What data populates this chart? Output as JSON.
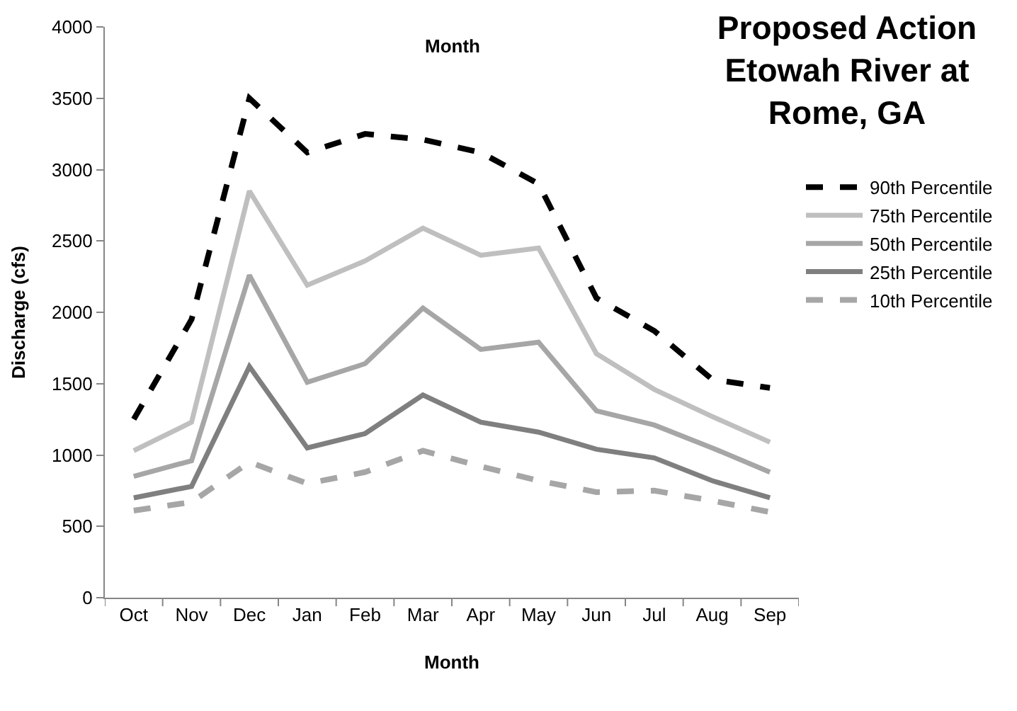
{
  "chart_data": {
    "type": "line",
    "title": "Proposed Action\nEtowah River at\nRome, GA",
    "xlabel": "Month",
    "ylabel": "Discharge (cfs)",
    "annotations": [
      "Month"
    ],
    "categories": [
      "Oct",
      "Nov",
      "Dec",
      "Jan",
      "Feb",
      "Mar",
      "Apr",
      "May",
      "Jun",
      "Jul",
      "Aug",
      "Sep"
    ],
    "ylim": [
      0,
      4000
    ],
    "yticks": [
      0,
      500,
      1000,
      1500,
      2000,
      2500,
      3000,
      3500,
      4000
    ],
    "grid": false,
    "legend": "right",
    "marker": "none",
    "series": [
      {
        "name": "90th Percentile",
        "color": "#000000",
        "line_style": "dashed",
        "values": [
          1250,
          1950,
          3500,
          3120,
          3250,
          3210,
          3120,
          2900,
          2100,
          1870,
          1530,
          1470
        ]
      },
      {
        "name": "75th Percentile",
        "color": "#bfbfbf",
        "line_style": "solid",
        "values": [
          1030,
          1230,
          2850,
          2190,
          2360,
          2590,
          2400,
          2450,
          1710,
          1460,
          1270,
          1090
        ]
      },
      {
        "name": "50th Percentile",
        "color": "#a6a6a6",
        "line_style": "solid",
        "values": [
          850,
          960,
          2260,
          1510,
          1640,
          2030,
          1740,
          1790,
          1310,
          1210,
          1050,
          880
        ]
      },
      {
        "name": "25th Percentile",
        "color": "#7f7f7f",
        "line_style": "solid",
        "values": [
          700,
          780,
          1620,
          1050,
          1150,
          1420,
          1230,
          1160,
          1040,
          980,
          820,
          700
        ]
      },
      {
        "name": "10th Percentile",
        "color": "#a6a6a6",
        "line_style": "dashed",
        "values": [
          610,
          670,
          950,
          800,
          880,
          1030,
          920,
          820,
          740,
          750,
          680,
          600
        ]
      }
    ]
  }
}
